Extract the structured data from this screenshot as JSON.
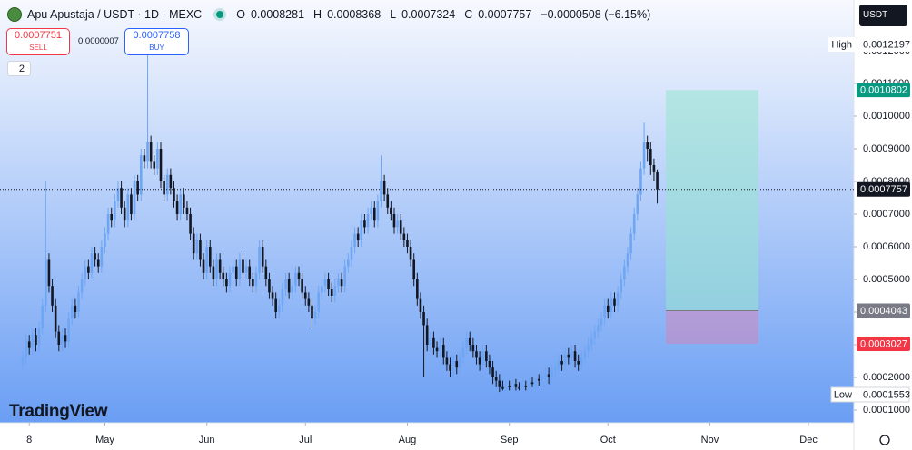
{
  "chart_data": {
    "type": "candlestick",
    "symbol": "Apu Apustaja / USDT · 1D · MEXC",
    "ohlc_names": [
      "O",
      "H",
      "L",
      "C"
    ],
    "change": "−0.0000508 (−6.15%)",
    "sell": {
      "price": "0.0007751",
      "label": "SELL"
    },
    "spread": "0.0000007",
    "buy": {
      "price": "0.0007758",
      "label": "BUY"
    },
    "indicator_count": "2",
    "currency": "USDT",
    "high_label": "High",
    "low_label": "Low",
    "brand": "TradingView",
    "up_color": "#6fa6f4",
    "down_color": "#131722",
    "position": {
      "target": 0.0010802,
      "entry": 0.0004043,
      "stop": 0.0003027
    },
    "xlim": [
      -6.9,
      252.8
    ],
    "xticks": [
      {
        "value": 2,
        "label": "8"
      },
      {
        "value": 25,
        "label": "May"
      },
      {
        "value": 56,
        "label": "Jun"
      },
      {
        "value": 86,
        "label": "Jul"
      },
      {
        "value": 117,
        "label": "Aug"
      },
      {
        "value": 148,
        "label": "Sep"
      },
      {
        "value": 178,
        "label": "Oct"
      },
      {
        "value": 209,
        "label": "Nov"
      },
      {
        "value": 239,
        "label": "Dec"
      }
    ],
    "ylim": [
      6.11e-05,
      0.0013556
    ],
    "yticks": [
      {
        "value": 0.0001,
        "label": "0.0001000"
      },
      {
        "value": 0.0002,
        "label": "0.0002000"
      },
      {
        "value": 0.0003,
        "label": "0.0003000"
      },
      {
        "value": 0.0004,
        "label": "0.0004000"
      },
      {
        "value": 0.0005,
        "label": "0.0005000"
      },
      {
        "value": 0.0006,
        "label": "0.0006000"
      },
      {
        "value": 0.0007,
        "label": "0.0007000"
      },
      {
        "value": 0.0008,
        "label": "0.0008000"
      },
      {
        "value": 0.0009,
        "label": "0.0009000"
      },
      {
        "value": 0.001,
        "label": "0.0010000"
      },
      {
        "value": 0.0011,
        "label": "0.0011000"
      },
      {
        "value": 0.0012,
        "label": "0.0012000"
      }
    ],
    "grid": false,
    "candles": [
      [
        0.00024,
        0.00028,
        0.00022,
        0.00026
      ],
      [
        0.00026,
        0.00033,
        0.00024,
        0.00031
      ],
      [
        0.00031,
        0.00033,
        0.00027,
        0.00029
      ],
      [
        0.00029,
        0.00035,
        0.00027,
        0.00033
      ],
      [
        0.00033,
        0.00035,
        0.00028,
        0.0003
      ],
      [
        0.0003,
        0.00037,
        0.00028,
        0.00035
      ],
      [
        0.00035,
        0.00044,
        0.00033,
        0.00042
      ],
      [
        0.00042,
        0.0008,
        0.0004,
        0.00056
      ],
      [
        0.00056,
        0.00058,
        0.00046,
        0.00048
      ],
      [
        0.00048,
        0.0005,
        0.0004,
        0.00042
      ],
      [
        0.00042,
        0.00044,
        0.00032,
        0.00034
      ],
      [
        0.00034,
        0.00036,
        0.00028,
        0.0003
      ],
      [
        0.0003,
        0.00035,
        0.00028,
        0.00033
      ],
      [
        0.00033,
        0.00035,
        0.00029,
        0.00031
      ],
      [
        0.00031,
        0.0004,
        0.00029,
        0.00038
      ],
      [
        0.00038,
        0.00044,
        0.00036,
        0.00042
      ],
      [
        0.00042,
        0.00044,
        0.00038,
        0.0004
      ],
      [
        0.0004,
        0.00048,
        0.00038,
        0.00046
      ],
      [
        0.00046,
        0.00052,
        0.00044,
        0.0005
      ],
      [
        0.0005,
        0.00056,
        0.00048,
        0.00054
      ],
      [
        0.00054,
        0.00056,
        0.0005,
        0.00052
      ],
      [
        0.00052,
        0.0006,
        0.0005,
        0.00058
      ],
      [
        0.00058,
        0.0006,
        0.00054,
        0.00056
      ],
      [
        0.00056,
        0.00058,
        0.00052,
        0.00054
      ],
      [
        0.00054,
        0.00062,
        0.00052,
        0.0006
      ],
      [
        0.0006,
        0.00066,
        0.00058,
        0.00064
      ],
      [
        0.00064,
        0.00072,
        0.00062,
        0.0007
      ],
      [
        0.0007,
        0.00072,
        0.00066,
        0.00068
      ],
      [
        0.00068,
        0.00076,
        0.00066,
        0.00074
      ],
      [
        0.00074,
        0.0008,
        0.00072,
        0.00078
      ],
      [
        0.00078,
        0.0008,
        0.0007,
        0.00072
      ],
      [
        0.00072,
        0.00074,
        0.00066,
        0.00068
      ],
      [
        0.00068,
        0.00078,
        0.00066,
        0.00076
      ],
      [
        0.00076,
        0.00078,
        0.00068,
        0.0007
      ],
      [
        0.0007,
        0.00082,
        0.00068,
        0.0008
      ],
      [
        0.0008,
        0.00082,
        0.00074,
        0.00076
      ],
      [
        0.00076,
        0.0009,
        0.00074,
        0.00088
      ],
      [
        0.00088,
        0.0009,
        0.00084,
        0.00086
      ],
      [
        0.00086,
        0.0012197,
        0.00084,
        0.00092
      ],
      [
        0.00092,
        0.00094,
        0.00084,
        0.00086
      ],
      [
        0.00086,
        0.00088,
        0.00082,
        0.00084
      ],
      [
        0.00084,
        0.00092,
        0.00082,
        0.0009
      ],
      [
        0.0009,
        0.00092,
        0.00078,
        0.0008
      ],
      [
        0.0008,
        0.00082,
        0.00074,
        0.00076
      ],
      [
        0.00076,
        0.00084,
        0.00074,
        0.00082
      ],
      [
        0.00082,
        0.00084,
        0.00076,
        0.00078
      ],
      [
        0.00078,
        0.0008,
        0.00072,
        0.00074
      ],
      [
        0.00074,
        0.00076,
        0.00068,
        0.0007
      ],
      [
        0.0007,
        0.00078,
        0.00068,
        0.00076
      ],
      [
        0.00076,
        0.00078,
        0.0007,
        0.00072
      ],
      [
        0.00072,
        0.00074,
        0.00068,
        0.0007
      ],
      [
        0.0007,
        0.00072,
        0.00062,
        0.00064
      ],
      [
        0.00064,
        0.00066,
        0.00056,
        0.00058
      ],
      [
        0.00058,
        0.00064,
        0.00056,
        0.00062
      ],
      [
        0.00062,
        0.00064,
        0.00054,
        0.00056
      ],
      [
        0.00056,
        0.00058,
        0.0005,
        0.00052
      ],
      [
        0.00052,
        0.00062,
        0.0005,
        0.0006
      ],
      [
        0.0006,
        0.00062,
        0.00052,
        0.00054
      ],
      [
        0.00054,
        0.00056,
        0.00048,
        0.0005
      ],
      [
        0.0005,
        0.00058,
        0.00048,
        0.00056
      ],
      [
        0.00056,
        0.00058,
        0.0005,
        0.00052
      ],
      [
        0.00052,
        0.00054,
        0.00048,
        0.0005
      ],
      [
        0.0005,
        0.00052,
        0.00046,
        0.00048
      ],
      [
        0.00048,
        0.00054,
        0.00046,
        0.00052
      ],
      [
        0.00052,
        0.00056,
        0.0005,
        0.00054
      ],
      [
        0.00054,
        0.00056,
        0.00048,
        0.0005
      ],
      [
        0.0005,
        0.00058,
        0.00048,
        0.00056
      ],
      [
        0.00056,
        0.00058,
        0.0005,
        0.00052
      ],
      [
        0.00052,
        0.00056,
        0.0005,
        0.00054
      ],
      [
        0.00054,
        0.00056,
        0.00048,
        0.0005
      ],
      [
        0.0005,
        0.00052,
        0.00046,
        0.00048
      ],
      [
        0.00048,
        0.00054,
        0.00046,
        0.00052
      ],
      [
        0.00052,
        0.00062,
        0.0005,
        0.0006
      ],
      [
        0.0006,
        0.00062,
        0.00052,
        0.00054
      ],
      [
        0.00054,
        0.00056,
        0.00048,
        0.0005
      ],
      [
        0.0005,
        0.00052,
        0.00044,
        0.00046
      ],
      [
        0.00046,
        0.00048,
        0.00042,
        0.00044
      ],
      [
        0.00044,
        0.00046,
        0.00038,
        0.0004
      ],
      [
        0.0004,
        0.00044,
        0.00038,
        0.00042
      ],
      [
        0.00042,
        0.00049,
        0.0004,
        0.00047
      ],
      [
        0.00047,
        0.00052,
        0.00045,
        0.0005
      ],
      [
        0.0005,
        0.00052,
        0.00044,
        0.00046
      ],
      [
        0.00046,
        0.0005,
        0.00044,
        0.00048
      ],
      [
        0.00048,
        0.00054,
        0.00046,
        0.00052
      ],
      [
        0.00052,
        0.00054,
        0.00048,
        0.0005
      ],
      [
        0.0005,
        0.00052,
        0.00044,
        0.00046
      ],
      [
        0.00046,
        0.00048,
        0.00042,
        0.00044
      ],
      [
        0.00044,
        0.00046,
        0.0004,
        0.00042
      ],
      [
        0.00042,
        0.00044,
        0.00035,
        0.00038
      ],
      [
        0.00038,
        0.00042,
        0.00036,
        0.0004
      ],
      [
        0.0004,
        0.00048,
        0.00038,
        0.00046
      ],
      [
        0.00046,
        0.0005,
        0.00044,
        0.00048
      ],
      [
        0.00048,
        0.00052,
        0.00046,
        0.0005
      ],
      [
        0.0005,
        0.00052,
        0.00045,
        0.00047
      ],
      [
        0.00047,
        0.00049,
        0.00043,
        0.00045
      ],
      [
        0.00045,
        0.0005,
        0.00043,
        0.00048
      ],
      [
        0.00048,
        0.00052,
        0.00046,
        0.0005
      ],
      [
        0.0005,
        0.00052,
        0.00046,
        0.00048
      ],
      [
        0.00048,
        0.00056,
        0.00046,
        0.00054
      ],
      [
        0.00054,
        0.00058,
        0.00052,
        0.00056
      ],
      [
        0.00056,
        0.00062,
        0.00054,
        0.0006
      ],
      [
        0.0006,
        0.00066,
        0.00058,
        0.00064
      ],
      [
        0.00064,
        0.00066,
        0.0006,
        0.00062
      ],
      [
        0.00062,
        0.0007,
        0.0006,
        0.00068
      ],
      [
        0.00068,
        0.0007,
        0.00064,
        0.00066
      ],
      [
        0.00066,
        0.00072,
        0.00064,
        0.0007
      ],
      [
        0.0007,
        0.00074,
        0.00068,
        0.00072
      ],
      [
        0.00072,
        0.00074,
        0.00066,
        0.00068
      ],
      [
        0.00068,
        0.00076,
        0.00066,
        0.00074
      ],
      [
        0.00074,
        0.00088,
        0.00072,
        0.0008
      ],
      [
        0.0008,
        0.00082,
        0.00074,
        0.00076
      ],
      [
        0.00076,
        0.00078,
        0.0007,
        0.00072
      ],
      [
        0.00072,
        0.00074,
        0.00068,
        0.0007
      ],
      [
        0.0007,
        0.00072,
        0.00064,
        0.00066
      ],
      [
        0.00066,
        0.0007,
        0.00064,
        0.00068
      ],
      [
        0.00068,
        0.0007,
        0.00062,
        0.00064
      ],
      [
        0.00064,
        0.00066,
        0.0006,
        0.00062
      ],
      [
        0.00062,
        0.00064,
        0.00058,
        0.0006
      ],
      [
        0.0006,
        0.00062,
        0.00054,
        0.00056
      ],
      [
        0.00056,
        0.00058,
        0.00048,
        0.0005
      ],
      [
        0.0005,
        0.00052,
        0.00042,
        0.00044
      ],
      [
        0.00044,
        0.00046,
        0.00038,
        0.0004
      ],
      [
        0.0004,
        0.00042,
        0.0002,
        0.00036
      ],
      [
        0.00036,
        0.00038,
        0.00028,
        0.0003
      ],
      [
        0.0003,
        0.00034,
        0.00028,
        0.00032
      ],
      [
        0.00032,
        0.00034,
        0.00027,
        0.00029
      ],
      [
        0.00029,
        0.00031,
        0.00026,
        0.00028
      ],
      [
        0.00028,
        0.00032,
        0.00026,
        0.0003
      ],
      [
        0.0003,
        0.00032,
        0.00024,
        0.00026
      ],
      [
        0.00026,
        0.00028,
        0.00022,
        0.00024
      ],
      [
        0.00024,
        0.00026,
        0.0002,
        0.00022
      ],
      [
        0.00022,
        0.00027,
        0.0002,
        0.00025
      ],
      [
        0.00025,
        0.00027,
        0.00021,
        0.00023
      ],
      [
        0.00023,
        0.00028,
        0.00021,
        0.00026
      ],
      [
        0.00026,
        0.00031,
        0.00024,
        0.00029
      ],
      [
        0.00029,
        0.00034,
        0.00027,
        0.00032
      ],
      [
        0.00032,
        0.00034,
        0.00028,
        0.0003
      ],
      [
        0.0003,
        0.00032,
        0.00026,
        0.00028
      ],
      [
        0.00028,
        0.0003,
        0.00024,
        0.00026
      ],
      [
        0.00026,
        0.00028,
        0.00022,
        0.00024
      ],
      [
        0.00024,
        0.0003,
        0.00022,
        0.00028
      ],
      [
        0.00028,
        0.0003,
        0.00023,
        0.00025
      ],
      [
        0.00025,
        0.00027,
        0.00021,
        0.00023
      ],
      [
        0.00023,
        0.00025,
        0.00018,
        0.0002
      ],
      [
        0.0002,
        0.00022,
        0.00017,
        0.00019
      ],
      [
        0.00019,
        0.00021,
        0.0001553,
        0.00017
      ],
      [
        0.00017,
        0.00019,
        0.00016,
        0.000165
      ],
      [
        0.000165,
        0.00019,
        0.00016,
        0.000175
      ],
      [
        0.000175,
        0.00019,
        0.00016,
        0.00017
      ],
      [
        0.00017,
        0.000195,
        0.00016,
        0.00018
      ],
      [
        0.00018,
        0.000195,
        0.00016,
        0.00017
      ],
      [
        0.00017,
        0.000185,
        0.00016,
        0.000165
      ],
      [
        0.000165,
        0.00019,
        0.00016,
        0.000175
      ],
      [
        0.000175,
        0.00019,
        0.00016,
        0.00017
      ],
      [
        0.00017,
        0.0002,
        0.00016,
        0.000185
      ],
      [
        0.000185,
        0.0002,
        0.00017,
        0.00018
      ],
      [
        0.00018,
        0.00021,
        0.00017,
        0.000195
      ],
      [
        0.000195,
        0.00021,
        0.000175,
        0.00019
      ],
      [
        0.00019,
        0.00022,
        0.00018,
        0.0002
      ],
      [
        0.0002,
        0.00023,
        0.00019,
        0.00021
      ],
      [
        0.00021,
        0.00023,
        0.00018,
        0.0002
      ],
      [
        0.0002,
        0.00024,
        0.00018,
        0.00022
      ],
      [
        0.00022,
        0.00025,
        0.0002,
        0.00023
      ],
      [
        0.00023,
        0.00027,
        0.00021,
        0.00025
      ],
      [
        0.00025,
        0.00027,
        0.00022,
        0.00024
      ],
      [
        0.00024,
        0.00029,
        0.00022,
        0.00027
      ],
      [
        0.00027,
        0.00029,
        0.00024,
        0.00026
      ],
      [
        0.00026,
        0.0003,
        0.00024,
        0.00028
      ],
      [
        0.00028,
        0.0003,
        0.00023,
        0.00025
      ],
      [
        0.00025,
        0.00027,
        0.00022,
        0.00024
      ],
      [
        0.00024,
        0.00028,
        0.00022,
        0.00026
      ],
      [
        0.00026,
        0.0003,
        0.00024,
        0.00028
      ],
      [
        0.00028,
        0.00032,
        0.00026,
        0.0003
      ],
      [
        0.0003,
        0.00034,
        0.00028,
        0.00032
      ],
      [
        0.00032,
        0.00036,
        0.0003,
        0.00034
      ],
      [
        0.00034,
        0.00038,
        0.00032,
        0.00036
      ],
      [
        0.00036,
        0.0004,
        0.00034,
        0.00038
      ],
      [
        0.00038,
        0.00044,
        0.00036,
        0.00042
      ],
      [
        0.00042,
        0.00044,
        0.00038,
        0.0004
      ],
      [
        0.0004,
        0.00046,
        0.00038,
        0.00044
      ],
      [
        0.00044,
        0.00046,
        0.0004,
        0.00042
      ],
      [
        0.00042,
        0.00048,
        0.0004,
        0.00046
      ],
      [
        0.00046,
        0.00052,
        0.00044,
        0.0005
      ],
      [
        0.0005,
        0.00056,
        0.00048,
        0.00054
      ],
      [
        0.00054,
        0.0006,
        0.00052,
        0.00058
      ],
      [
        0.00058,
        0.00066,
        0.00056,
        0.00064
      ],
      [
        0.00064,
        0.00072,
        0.00062,
        0.0007
      ],
      [
        0.0007,
        0.00078,
        0.00068,
        0.00076
      ],
      [
        0.00076,
        0.00086,
        0.00074,
        0.00084
      ],
      [
        0.00084,
        0.00098,
        0.00082,
        0.00092
      ],
      [
        0.00092,
        0.00094,
        0.00086,
        0.0009
      ],
      [
        0.0009,
        0.00092,
        0.00082,
        0.00085
      ],
      [
        0.00085,
        0.00087,
        0.0008,
        0.0008281
      ],
      [
        0.0008281,
        0.0008368,
        0.0007324,
        0.0007757
      ]
    ]
  }
}
